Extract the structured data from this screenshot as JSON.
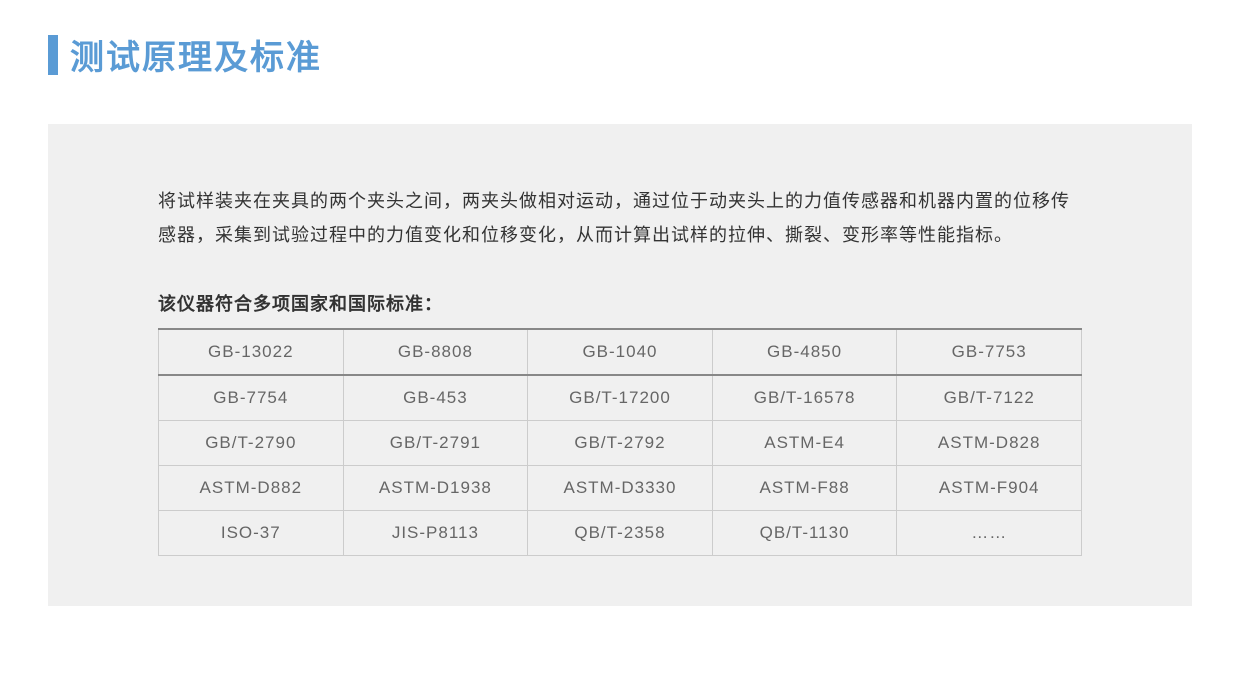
{
  "header": {
    "title": "测试原理及标准",
    "accent_color": "#5a9bd5",
    "title_fontsize": 34
  },
  "content": {
    "background_color": "#f0f0f0",
    "description": "将试样装夹在夹具的两个夹头之间，两夹头做相对运动，通过位于动夹头上的力值传感器和机器内置的位移传感器，采集到试验过程中的力值变化和位移变化，从而计算出试样的拉伸、撕裂、变形率等性能指标。",
    "subtitle": "该仪器符合多项国家和国际标准：",
    "text_color": "#333333",
    "description_fontsize": 18
  },
  "standards_table": {
    "type": "table",
    "columns": 5,
    "border_color": "#cccccc",
    "heavy_border_color": "#888888",
    "cell_text_color": "#666666",
    "cell_fontsize": 17,
    "rows": [
      [
        "GB-13022",
        "GB-8808",
        "GB-1040",
        "GB-4850",
        "GB-7753"
      ],
      [
        "GB-7754",
        "GB-453",
        "GB/T-17200",
        "GB/T-16578",
        "GB/T-7122"
      ],
      [
        "GB/T-2790",
        "GB/T-2791",
        "GB/T-2792",
        "ASTM-E4",
        "ASTM-D828"
      ],
      [
        "ASTM-D882",
        "ASTM-D1938",
        "ASTM-D3330",
        "ASTM-F88",
        "ASTM-F904"
      ],
      [
        "ISO-37",
        "JIS-P8113",
        "QB/T-2358",
        "QB/T-1130",
        "……"
      ]
    ]
  }
}
